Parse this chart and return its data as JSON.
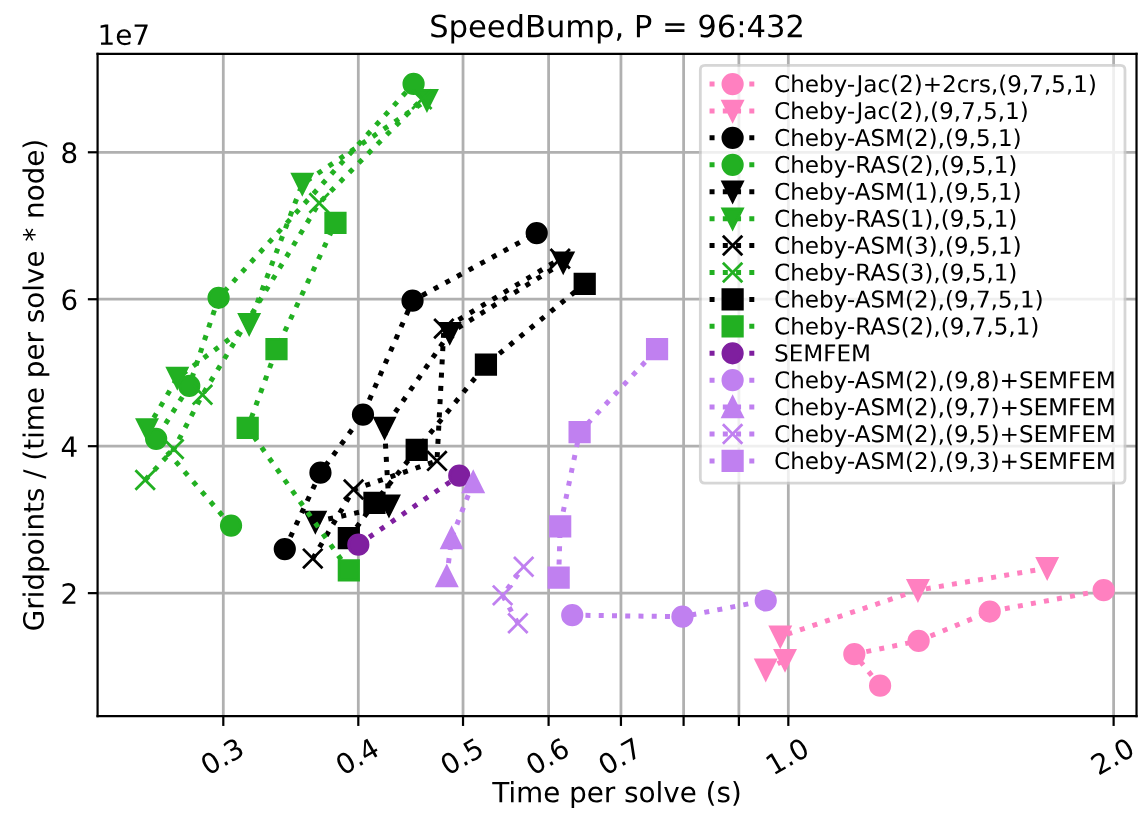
{
  "chart_data": {
    "type": "line",
    "title": "SpeedBump, P = 96:432",
    "xlabel": "Time per solve (s)",
    "ylabel": "Gridpoints / (time per solve * node)",
    "annotations": [
      "1e7"
    ],
    "log": "x",
    "xlim": [
      0.2295,
      2.1
    ],
    "ylim": [
      0.325,
      9.34
    ],
    "xticks": [
      0.3,
      0.4,
      0.5,
      0.6,
      0.7,
      {
        "value": 0.8,
        "label": null
      },
      {
        "value": 0.9,
        "label": null
      },
      {
        "value": 1,
        "label": "1.0"
      },
      {
        "value": 2,
        "label": "2.0"
      }
    ],
    "yticks": [
      2,
      4,
      6,
      8
    ],
    "grid": true,
    "legend": "top right",
    "line_style": "dotted",
    "series": [
      {
        "name": "Cheby-Jac(2)+2crs,(9,7,5,1)",
        "color": "#ff80c0",
        "marker": "circle",
        "x": [
          1.216,
          1.151,
          1.32,
          1.536,
          1.958
        ],
        "values": [
          0.74,
          1.17,
          1.35,
          1.75,
          2.04
        ]
      },
      {
        "name": "Cheby-Jac(2),(9,7,5,1)",
        "color": "#ff80c0",
        "marker": "triangle_down",
        "x": [
          0.953,
          0.993,
          0.983,
          1.318,
          1.736
        ],
        "values": [
          0.96,
          1.09,
          1.41,
          2.04,
          2.34
        ]
      },
      {
        "name": "Cheby-ASM(2),(9,5,1)",
        "color": "#000000",
        "marker": "circle",
        "x": [
          0.342,
          0.369,
          0.404,
          0.449,
          0.585
        ],
        "values": [
          2.6,
          3.64,
          4.43,
          5.98,
          6.9
        ]
      },
      {
        "name": "Cheby-RAS(2),(9,5,1)",
        "color": "#22b022",
        "marker": "circle",
        "x": [
          0.305,
          0.26,
          0.279,
          0.297,
          0.45
        ],
        "values": [
          2.92,
          4.1,
          4.82,
          6.02,
          8.93
        ]
      },
      {
        "name": "Cheby-ASM(1),(9,5,1)",
        "color": "#000000",
        "marker": "triangle_down",
        "x": [
          0.365,
          0.427,
          0.423,
          0.486,
          0.619
        ],
        "values": [
          2.97,
          3.19,
          4.25,
          5.54,
          6.5
        ]
      },
      {
        "name": "Cheby-RAS(1),(9,5,1)",
        "color": "#22b022",
        "marker": "triangle_down",
        "x": [
          0.255,
          0.272,
          0.317,
          0.355,
          0.463
        ],
        "values": [
          4.23,
          4.93,
          5.66,
          7.57,
          8.71
        ]
      },
      {
        "name": "Cheby-ASM(3),(9,5,1)",
        "color": "#000000",
        "marker": "cross",
        "x": [
          0.363,
          0.396,
          0.473,
          0.48,
          0.615
        ],
        "values": [
          2.47,
          3.41,
          3.8,
          5.6,
          6.55
        ]
      },
      {
        "name": "Cheby-RAS(3),(9,5,1)",
        "color": "#22b022",
        "marker": "cross",
        "x": [
          0.254,
          0.27,
          0.287,
          0.368,
          0.458
        ],
        "values": [
          3.54,
          3.96,
          4.7,
          7.31,
          8.72
        ]
      },
      {
        "name": "Cheby-ASM(2),(9,7,5,1)",
        "color": "#000000",
        "marker": "square",
        "x": [
          0.392,
          0.414,
          0.453,
          0.525,
          0.648
        ],
        "values": [
          2.75,
          3.23,
          3.95,
          5.11,
          6.21
        ]
      },
      {
        "name": "Cheby-RAS(2),(9,7,5,1)",
        "color": "#22b022",
        "marker": "square",
        "x": [
          0.392,
          0.316,
          0.336,
          0.381
        ],
        "values": [
          2.31,
          4.25,
          5.32,
          7.04
        ]
      },
      {
        "name": "SEMFEM",
        "color": "#7f1f9f",
        "marker": "circle",
        "x": [
          0.4,
          0.496
        ],
        "values": [
          2.66,
          3.6
        ]
      },
      {
        "name": "Cheby-ASM(2),(9,8)+SEMFEM",
        "color": "#c080f0",
        "marker": "circle",
        "x": [
          0.631,
          0.798,
          0.953
        ],
        "values": [
          1.7,
          1.68,
          1.9
        ]
      },
      {
        "name": "Cheby-ASM(2),(9,7)+SEMFEM",
        "color": "#c080f0",
        "marker": "triangle",
        "x": [
          0.483,
          0.488,
          0.511
        ],
        "values": [
          2.23,
          2.75,
          3.51
        ]
      },
      {
        "name": "Cheby-ASM(2),(9,5)+SEMFEM",
        "color": "#c080f0",
        "marker": "cross",
        "x": [
          0.562,
          0.544,
          0.569
        ],
        "values": [
          1.59,
          1.97,
          2.36
        ]
      },
      {
        "name": "Cheby-ASM(2),(9,3)+SEMFEM",
        "color": "#c080f0",
        "marker": "square",
        "x": [
          0.613,
          0.615,
          0.641,
          0.756
        ],
        "values": [
          2.21,
          2.91,
          4.19,
          5.32
        ]
      }
    ]
  }
}
